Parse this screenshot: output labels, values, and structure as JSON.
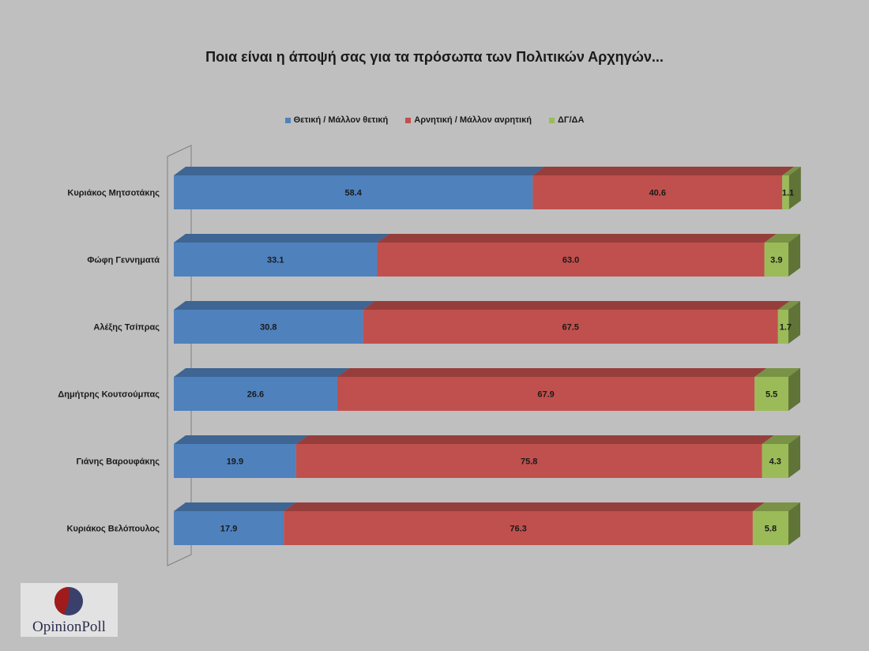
{
  "chart_data": {
    "type": "bar",
    "orientation": "horizontal",
    "stacked": true,
    "title": "Ποια είναι η άποψή σας για τα πρόσωπα των Πολιτικών Αρχηγών...",
    "legend_position": "top",
    "categories": [
      "Κυριάκος Μητσοτάκης",
      "Φώφη Γεννηματά",
      "Αλέξης Τσίπρας",
      "Δημήτρης Κουτσούμπας",
      "Γιάνης Βαρουφάκης",
      "Κυριάκος Βελόπουλος"
    ],
    "series": [
      {
        "name": "Θετική / Μάλλον θετική",
        "color": "#4f81bd",
        "values": [
          58.4,
          33.1,
          30.8,
          26.6,
          19.9,
          17.9
        ],
        "labels": [
          "58.4",
          "33.1",
          "30.8",
          "26.6",
          "19.9",
          "17.9"
        ]
      },
      {
        "name": "Αρνητική / Μάλλον ανρητική",
        "color": "#c0504d",
        "values": [
          40.6,
          63.0,
          67.5,
          67.9,
          75.8,
          76.3
        ],
        "labels": [
          "40.6",
          "63.0",
          "67.5",
          "67.9",
          "75.8",
          "76.3"
        ]
      },
      {
        "name": "ΔΓ/ΔΑ",
        "color": "#9bbb59",
        "values": [
          1.1,
          3.9,
          1.7,
          5.5,
          4.3,
          5.8
        ],
        "labels": [
          "1.1",
          "3.9",
          "1.7",
          "5.5",
          "4.3",
          "5.8"
        ]
      }
    ],
    "xlim": [
      0,
      100
    ],
    "grid": false
  },
  "logo": {
    "text": "OpinionPoll"
  }
}
